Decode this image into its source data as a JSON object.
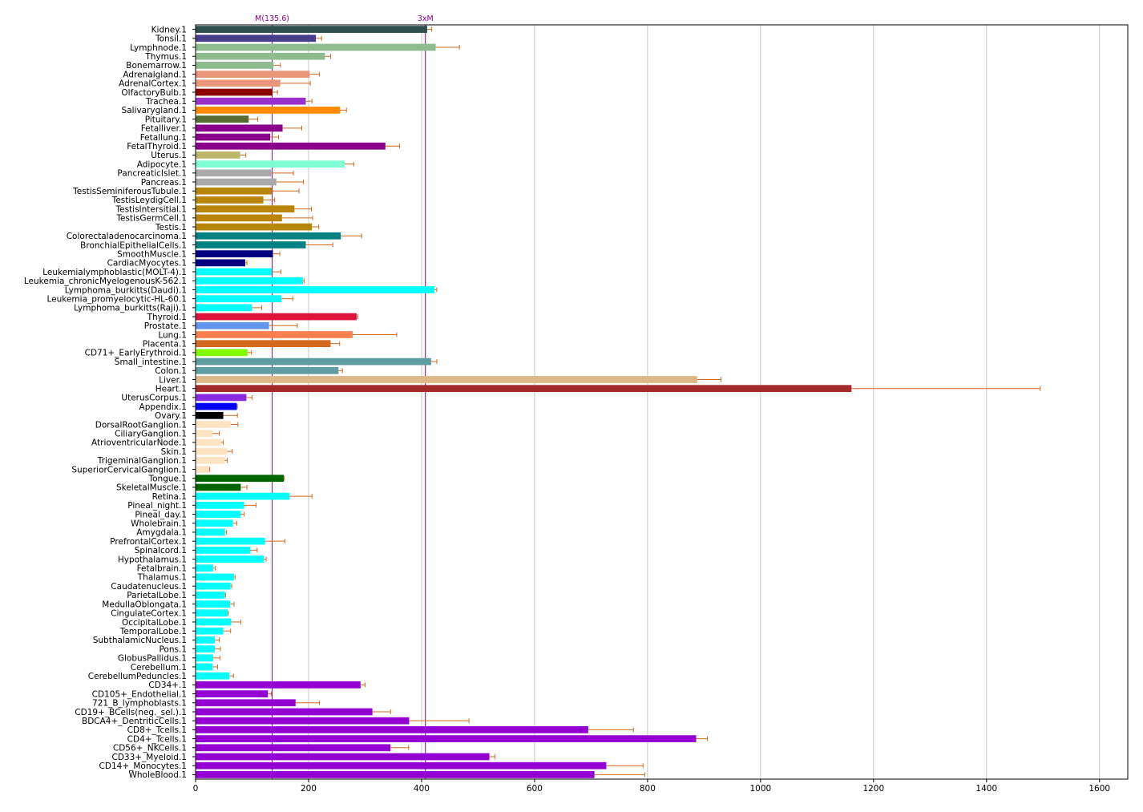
{
  "chart_data": {
    "type": "bar",
    "orientation": "horizontal",
    "xlim": [
      0,
      1650
    ],
    "xticks": [
      0,
      200,
      400,
      600,
      800,
      1000,
      1200,
      1400,
      1600
    ],
    "grid": "vertical",
    "reference_lines": [
      {
        "label": "M(135.6)",
        "value": 135.6,
        "color": "#8b008b"
      },
      {
        "label": "3xM",
        "value": 406.8,
        "color": "#8b008b"
      }
    ],
    "error_color": "#d2691e",
    "categories": [
      {
        "label": "Kidney.1",
        "value": 410,
        "error": 8,
        "color": "#2f4f4f"
      },
      {
        "label": "Tonsil.1",
        "value": 213,
        "error": 10,
        "color": "#483d8b"
      },
      {
        "label": "Lymphnode.1",
        "value": 425,
        "error": 42,
        "color": "#8fbc8f"
      },
      {
        "label": "Thymus.1",
        "value": 229,
        "error": 10,
        "color": "#8fbc8f"
      },
      {
        "label": "Bonemarrow.1",
        "value": 138,
        "error": 12,
        "color": "#8fbc8f"
      },
      {
        "label": "Adrenalgland.1",
        "value": 202,
        "error": 17,
        "color": "#e9967a"
      },
      {
        "label": "AdrenalCortex.1",
        "value": 150,
        "error": 53,
        "color": "#e9967a"
      },
      {
        "label": "OlfactoryBulb.1",
        "value": 136,
        "error": 9,
        "color": "#8b0000"
      },
      {
        "label": "Trachea.1",
        "value": 195,
        "error": 11,
        "color": "#9932cc"
      },
      {
        "label": "Salivarygland.1",
        "value": 256,
        "error": 11,
        "color": "#ff8c00"
      },
      {
        "label": "Pituitary.1",
        "value": 94,
        "error": 16,
        "color": "#556b2f"
      },
      {
        "label": "Fetalliver.1",
        "value": 154,
        "error": 34,
        "color": "#8b008b"
      },
      {
        "label": "Fetallung.1",
        "value": 132,
        "error": 15,
        "color": "#8b008b"
      },
      {
        "label": "FetalThyroid.1",
        "value": 336,
        "error": 25,
        "color": "#8b008b"
      },
      {
        "label": "Uterus.1",
        "value": 79,
        "error": 10,
        "color": "#bdb76b"
      },
      {
        "label": "Adipocyte.1",
        "value": 264,
        "error": 16,
        "color": "#7fffd4"
      },
      {
        "label": "PancreaticIslet.1",
        "value": 134,
        "error": 39,
        "color": "#a9a9a9"
      },
      {
        "label": "Pancreas.1",
        "value": 143,
        "error": 48,
        "color": "#a9a9a9"
      },
      {
        "label": "TestisSeminiferousTubule.1",
        "value": 135,
        "error": 48,
        "color": "#b8860b"
      },
      {
        "label": "TestisLeydigCell.1",
        "value": 120,
        "error": 20,
        "color": "#b8860b"
      },
      {
        "label": "TestisIntersitial.1",
        "value": 175,
        "error": 30,
        "color": "#b8860b"
      },
      {
        "label": "TestisGermCell.1",
        "value": 153,
        "error": 54,
        "color": "#b8860b"
      },
      {
        "label": "Testis.1",
        "value": 206,
        "error": 12,
        "color": "#b8860b"
      },
      {
        "label": "Colorectaladenocarcinoma.1",
        "value": 257,
        "error": 37,
        "color": "#008080"
      },
      {
        "label": "BronchialEpithelialCells.1",
        "value": 195,
        "error": 48,
        "color": "#008080"
      },
      {
        "label": "SmoothMuscle.1",
        "value": 137,
        "error": 12,
        "color": "#000080"
      },
      {
        "label": "CardiacMyocytes.1",
        "value": 88,
        "error": 3,
        "color": "#000080"
      },
      {
        "label": "Leukemialymphoblastic(MOLT-4).1",
        "value": 135,
        "error": 16,
        "color": "#00ffff"
      },
      {
        "label": "Leukemia_chronicMyelogenousK-562.1",
        "value": 190,
        "error": 2,
        "color": "#00ffff"
      },
      {
        "label": "Lymphoma_burkitts(Daudi).1",
        "value": 423,
        "error": 4,
        "color": "#00ffff"
      },
      {
        "label": "Leukemia_promyelocytic-HL-60.1",
        "value": 152,
        "error": 20,
        "color": "#00ffff"
      },
      {
        "label": "Lymphoma_burkitts(Raji).1",
        "value": 100,
        "error": 17,
        "color": "#00ffff"
      },
      {
        "label": "Thyroid.1",
        "value": 285,
        "error": 2,
        "color": "#dc143c"
      },
      {
        "label": "Prostate.1",
        "value": 130,
        "error": 50,
        "color": "#6495ed"
      },
      {
        "label": "Lung.1",
        "value": 278,
        "error": 78,
        "color": "#ff7f50"
      },
      {
        "label": "Placenta.1",
        "value": 239,
        "error": 16,
        "color": "#d2691e"
      },
      {
        "label": "CD71+_EarlyErythroid.1",
        "value": 92,
        "error": 7,
        "color": "#7fff00"
      },
      {
        "label": "Small_intestine.1",
        "value": 417,
        "error": 10,
        "color": "#5f9ea0"
      },
      {
        "label": "Colon.1",
        "value": 253,
        "error": 7,
        "color": "#5f9ea0"
      },
      {
        "label": "Liver.1",
        "value": 888,
        "error": 42,
        "color": "#deb887"
      },
      {
        "label": "Heart.1",
        "value": 1161,
        "error": 334,
        "color": "#a52a2a"
      },
      {
        "label": "UterusCorpus.1",
        "value": 90,
        "error": 10,
        "color": "#8a2be2"
      },
      {
        "label": "Appendix.1",
        "value": 73,
        "error": 1,
        "color": "#0000ff"
      },
      {
        "label": "Ovary.1",
        "value": 49,
        "error": 25,
        "color": "#000000"
      },
      {
        "label": "DorsalRootGanglion.1",
        "value": 62,
        "error": 13,
        "color": "#ffe4c4"
      },
      {
        "label": "CiliaryGanglion.1",
        "value": 30,
        "error": 12,
        "color": "#ffe4c4"
      },
      {
        "label": "AtrioventricularNode.1",
        "value": 45,
        "error": 4,
        "color": "#ffe4c4"
      },
      {
        "label": "Skin.1",
        "value": 56,
        "error": 9,
        "color": "#ffe4c4"
      },
      {
        "label": "TrigeminalGanglion.1",
        "value": 52,
        "error": 4,
        "color": "#ffe4c4"
      },
      {
        "label": "SuperiorCervicalGanglion.1",
        "value": 24,
        "error": 1,
        "color": "#ffe4c4"
      },
      {
        "label": "Tongue.1",
        "value": 156,
        "error": 1,
        "color": "#006400"
      },
      {
        "label": "SkeletalMuscle.1",
        "value": 80,
        "error": 11,
        "color": "#006400"
      },
      {
        "label": "Retina.1",
        "value": 166,
        "error": 40,
        "color": "#00ffff"
      },
      {
        "label": "Pineal_night.1",
        "value": 86,
        "error": 21,
        "color": "#00ffff"
      },
      {
        "label": "Pineal_day.1",
        "value": 80,
        "error": 6,
        "color": "#00ffff"
      },
      {
        "label": "Wholebrain.1",
        "value": 66,
        "error": 7,
        "color": "#00ffff"
      },
      {
        "label": "Amygdala.1",
        "value": 52,
        "error": 3,
        "color": "#00ffff"
      },
      {
        "label": "PrefrontalCortex.1",
        "value": 123,
        "error": 35,
        "color": "#00ffff"
      },
      {
        "label": "Spinalcord.1",
        "value": 97,
        "error": 12,
        "color": "#00ffff"
      },
      {
        "label": "Hypothalamus.1",
        "value": 121,
        "error": 4,
        "color": "#00ffff"
      },
      {
        "label": "Fetalbrain.1",
        "value": 31,
        "error": 4,
        "color": "#00ffff"
      },
      {
        "label": "Thalamus.1",
        "value": 68,
        "error": 2,
        "color": "#00ffff"
      },
      {
        "label": "Caudatenucleus.1",
        "value": 62,
        "error": 2,
        "color": "#00ffff"
      },
      {
        "label": "ParietalLobe.1",
        "value": 52,
        "error": 1,
        "color": "#00ffff"
      },
      {
        "label": "MedullaOblongata.1",
        "value": 61,
        "error": 7,
        "color": "#00ffff"
      },
      {
        "label": "CingulateCortex.1",
        "value": 57,
        "error": 1,
        "color": "#00ffff"
      },
      {
        "label": "OccipitalLobe.1",
        "value": 63,
        "error": 17,
        "color": "#00ffff"
      },
      {
        "label": "TemporalLobe.1",
        "value": 49,
        "error": 13,
        "color": "#00ffff"
      },
      {
        "label": "SubthalamicNucleus.1",
        "value": 34,
        "error": 8,
        "color": "#00ffff"
      },
      {
        "label": "Pons.1",
        "value": 34,
        "error": 10,
        "color": "#00ffff"
      },
      {
        "label": "GlobusPallidus.1",
        "value": 31,
        "error": 12,
        "color": "#00ffff"
      },
      {
        "label": "Cerebellum.1",
        "value": 30,
        "error": 9,
        "color": "#00ffff"
      },
      {
        "label": "CerebellumPeduncles.1",
        "value": 60,
        "error": 7,
        "color": "#00ffff"
      },
      {
        "label": "CD34+.1",
        "value": 292,
        "error": 8,
        "color": "#9400d3"
      },
      {
        "label": "CD105+_Endothelial.1",
        "value": 128,
        "error": 6,
        "color": "#9400d3"
      },
      {
        "label": "721_B_lymphoblasts.1",
        "value": 177,
        "error": 42,
        "color": "#9400d3"
      },
      {
        "label": "CD19+_BCells(neg._sel.).1",
        "value": 313,
        "error": 32,
        "color": "#9400d3"
      },
      {
        "label": "BDCA4+_DentriticCells.1",
        "value": 378,
        "error": 106,
        "color": "#9400d3"
      },
      {
        "label": "CD8+_Tcells.1",
        "value": 695,
        "error": 80,
        "color": "#9400d3"
      },
      {
        "label": "CD4+_Tcells.1",
        "value": 886,
        "error": 20,
        "color": "#9400d3"
      },
      {
        "label": "CD56+_NKCells.1",
        "value": 345,
        "error": 32,
        "color": "#9400d3"
      },
      {
        "label": "CD33+_Myeloid.1",
        "value": 520,
        "error": 10,
        "color": "#9400d3"
      },
      {
        "label": "CD14+_Monocytes.1",
        "value": 727,
        "error": 65,
        "color": "#9400d3"
      },
      {
        "label": "WholeBlood.1",
        "value": 706,
        "error": 89,
        "color": "#9400d3"
      }
    ]
  }
}
